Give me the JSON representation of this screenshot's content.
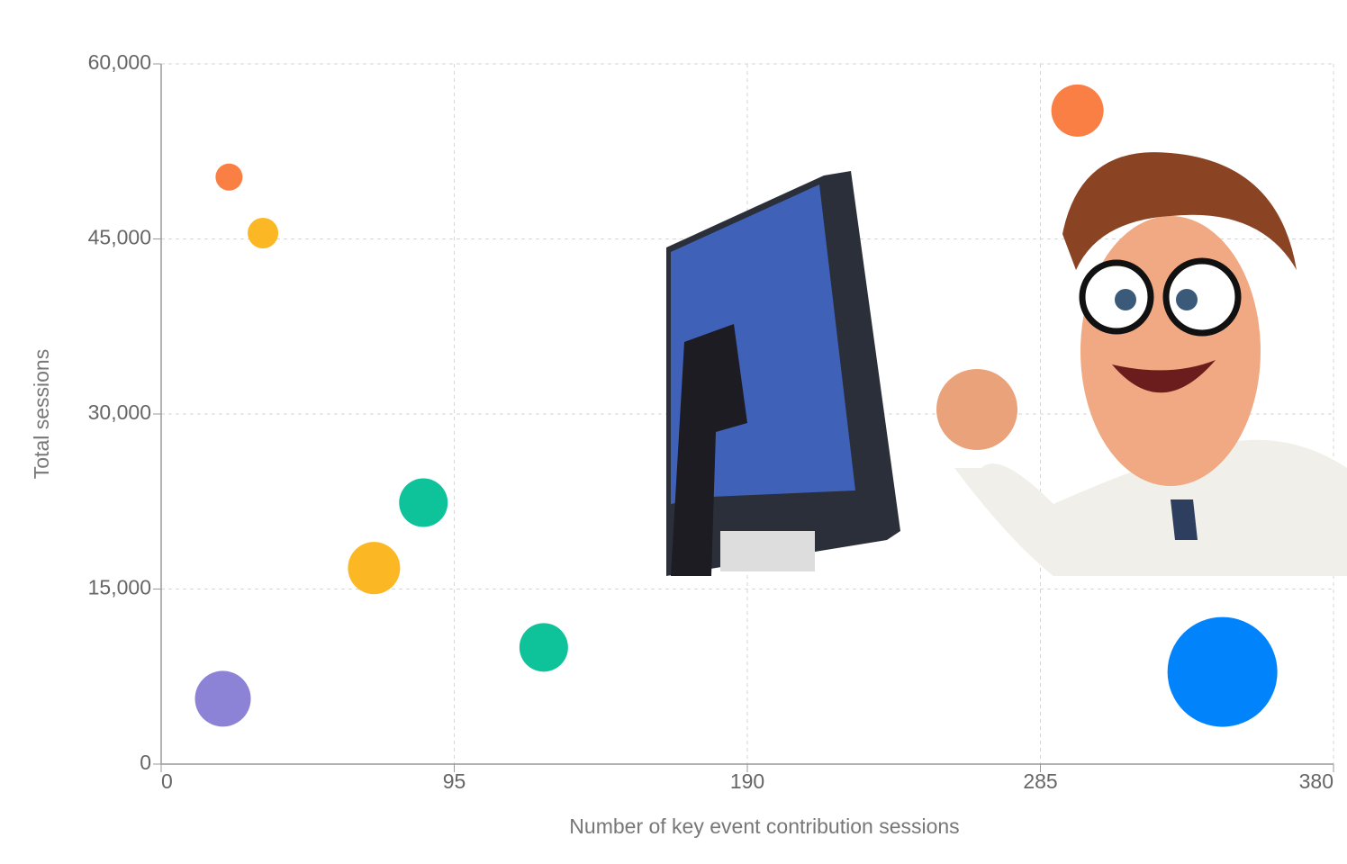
{
  "chart_data": {
    "type": "bubble",
    "x_label": "Number of key event contribution sessions",
    "y_label": "Total sessions",
    "xlim": [
      0,
      380
    ],
    "ylim": [
      0,
      60000
    ],
    "xticks": [
      0,
      95,
      190,
      285,
      380
    ],
    "yticks": [
      0,
      {
        "value": 15000,
        "label": "15,000"
      },
      {
        "value": 30000,
        "label": "30,000"
      },
      {
        "value": 45000,
        "label": "45,000"
      },
      {
        "value": 60000,
        "label": "60,000"
      }
    ],
    "grid": true,
    "series": [
      {
        "x": [
          22,
          33,
          85,
          69,
          124,
          20,
          297,
          344
        ],
        "values": [
          50300,
          45500,
          22400,
          16800,
          10000,
          5600,
          56000,
          7900
        ],
        "sizes": [
          15,
          17,
          27,
          29,
          27,
          31,
          29,
          61
        ],
        "colors": [
          "#f97f45",
          "#fbb724",
          "#0ec299",
          "#fbb724",
          "#0ec299",
          "#8c82d6",
          "#f97f45",
          "#0184fb"
        ]
      }
    ]
  }
}
